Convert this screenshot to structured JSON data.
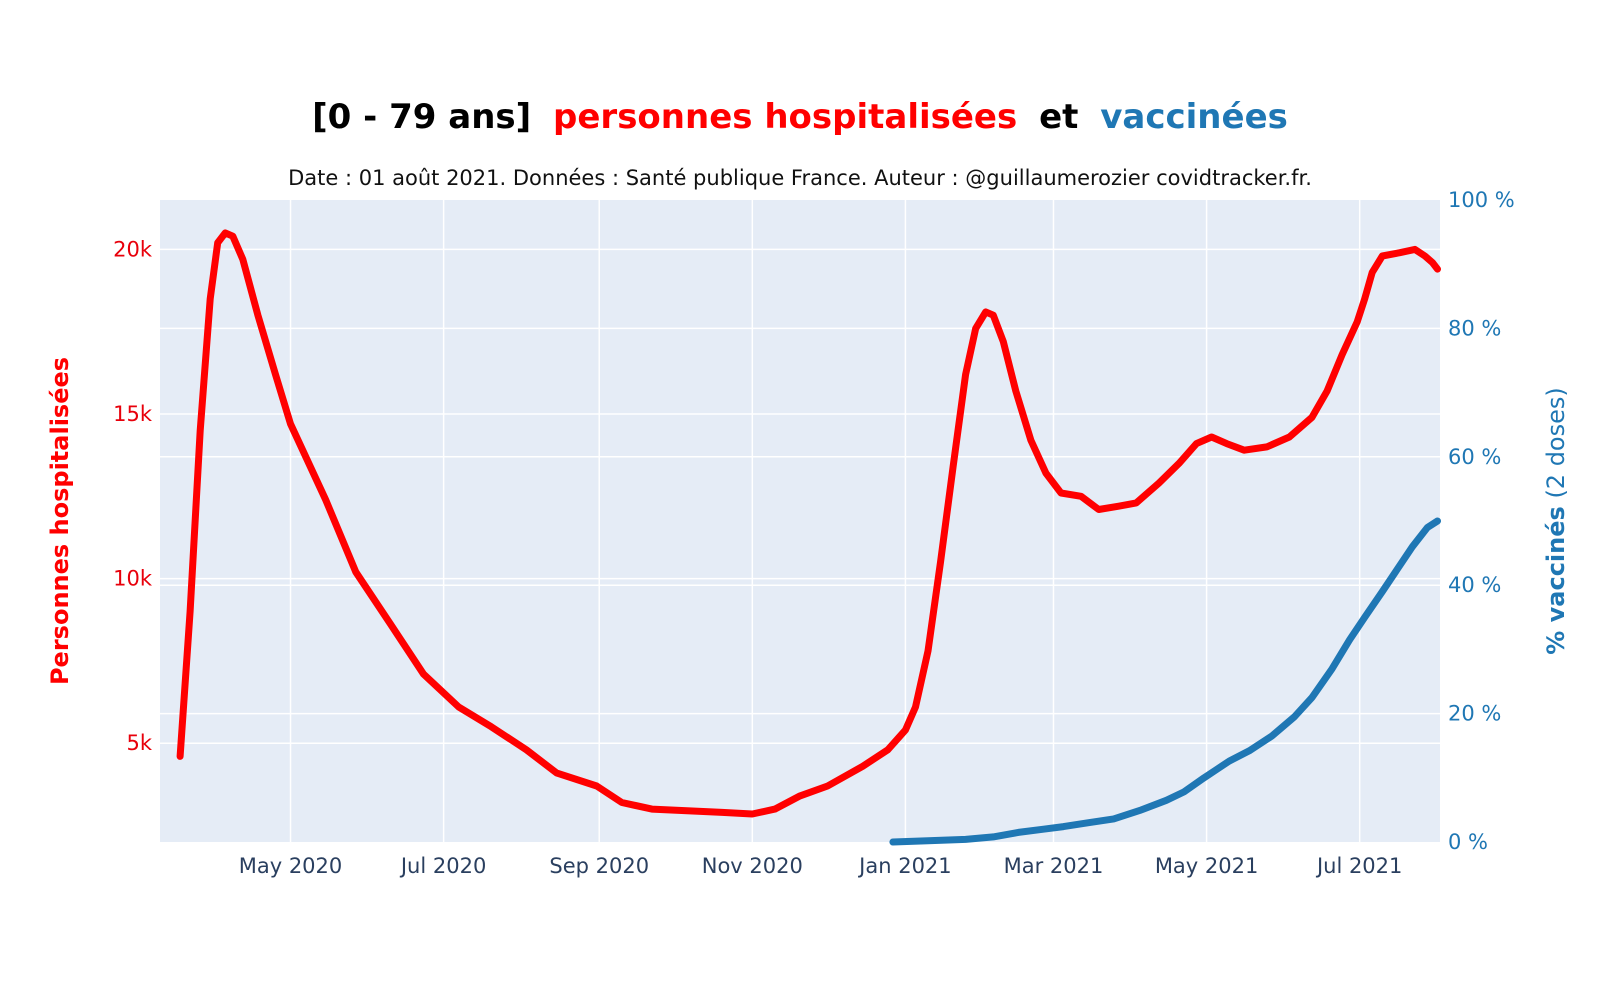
{
  "title": {
    "prefix": "[0 - 79 ans]",
    "part_red": "personnes hospitalisées",
    "part_mid": "et",
    "part_blue": "vaccinées"
  },
  "subtitle": "Date : 01 août 2021. Données : Santé publique France. Auteur : @guillaumerozier covidtracker.fr.",
  "colors": {
    "red": "#ff0000",
    "blue": "#1f77b4",
    "plot_bg": "#e5ecf6",
    "grid": "#ffffff",
    "x_tick": "#2a3f5f"
  },
  "chart_data": {
    "type": "line",
    "grid": true,
    "x_ticks": [
      "May 2020",
      "Jul 2020",
      "Sep 2020",
      "Nov 2020",
      "Jan 2021",
      "Mar 2021",
      "May 2021",
      "Jul 2021"
    ],
    "y_left": {
      "label": "Personnes hospitalisées",
      "ticks": [
        "5k",
        "10k",
        "15k",
        "20k"
      ],
      "range": [
        2000,
        21500
      ]
    },
    "y_right": {
      "label_bold": "% vaccinés",
      "label_normal": " (2 doses)",
      "ticks": [
        "0 %",
        "20 %",
        "40 %",
        "60 %",
        "80 %",
        "100 %"
      ],
      "range": [
        0,
        100
      ]
    },
    "x_range": [
      "2020-03-10",
      "2021-08-02"
    ],
    "series": [
      {
        "name": "Personnes hospitalisées",
        "axis": "left",
        "color": "#ff0000",
        "points": [
          [
            "2020-03-18",
            4600
          ],
          [
            "2020-03-22",
            9000
          ],
          [
            "2020-03-26",
            14500
          ],
          [
            "2020-03-30",
            18500
          ],
          [
            "2020-04-02",
            20200
          ],
          [
            "2020-04-05",
            20500
          ],
          [
            "2020-04-08",
            20400
          ],
          [
            "2020-04-12",
            19700
          ],
          [
            "2020-04-18",
            18000
          ],
          [
            "2020-04-25",
            16200
          ],
          [
            "2020-05-01",
            14700
          ],
          [
            "2020-05-15",
            12400
          ],
          [
            "2020-05-27",
            10200
          ],
          [
            "2020-06-10",
            8600
          ],
          [
            "2020-06-23",
            7100
          ],
          [
            "2020-07-07",
            6100
          ],
          [
            "2020-07-20",
            5500
          ],
          [
            "2020-08-03",
            4800
          ],
          [
            "2020-08-15",
            4100
          ],
          [
            "2020-08-31",
            3700
          ],
          [
            "2020-09-10",
            3200
          ],
          [
            "2020-09-22",
            3000
          ],
          [
            "2020-10-06",
            2950
          ],
          [
            "2020-10-20",
            2900
          ],
          [
            "2020-11-01",
            2850
          ],
          [
            "2020-11-10",
            3000
          ],
          [
            "2020-11-20",
            3400
          ],
          [
            "2020-12-01",
            3700
          ],
          [
            "2020-12-15",
            4300
          ],
          [
            "2020-12-25",
            4800
          ],
          [
            "2021-01-01",
            5400
          ],
          [
            "2021-01-05",
            6100
          ],
          [
            "2021-01-10",
            7800
          ],
          [
            "2021-01-15",
            10500
          ],
          [
            "2021-01-20",
            13400
          ],
          [
            "2021-01-25",
            16200
          ],
          [
            "2021-01-29",
            17600
          ],
          [
            "2021-02-02",
            18100
          ],
          [
            "2021-02-05",
            18000
          ],
          [
            "2021-02-09",
            17200
          ],
          [
            "2021-02-14",
            15700
          ],
          [
            "2021-02-20",
            14200
          ],
          [
            "2021-02-26",
            13200
          ],
          [
            "2021-03-04",
            12600
          ],
          [
            "2021-03-12",
            12500
          ],
          [
            "2021-03-19",
            12100
          ],
          [
            "2021-03-27",
            12200
          ],
          [
            "2021-04-03",
            12300
          ],
          [
            "2021-04-12",
            12900
          ],
          [
            "2021-04-20",
            13500
          ],
          [
            "2021-04-27",
            14100
          ],
          [
            "2021-05-03",
            14300
          ],
          [
            "2021-05-09",
            14100
          ],
          [
            "2021-05-16",
            13900
          ],
          [
            "2021-05-25",
            14000
          ],
          [
            "2021-06-03",
            14300
          ],
          [
            "2021-06-12",
            14900
          ],
          [
            "2021-06-18",
            15700
          ],
          [
            "2021-06-24",
            16800
          ],
          [
            "2021-06-30",
            17800
          ],
          [
            "2021-07-03",
            18500
          ],
          [
            "2021-07-06",
            19300
          ],
          [
            "2021-07-10",
            19800
          ],
          [
            "2021-07-17",
            19900
          ],
          [
            "2021-07-23",
            20000
          ],
          [
            "2021-07-27",
            19800
          ],
          [
            "2021-07-30",
            19600
          ],
          [
            "2021-08-01",
            19400
          ]
        ]
      },
      {
        "name": "% vaccinés (2 doses)",
        "axis": "right",
        "color": "#1f77b4",
        "points": [
          [
            "2020-12-27",
            0
          ],
          [
            "2021-01-10",
            0.2
          ],
          [
            "2021-01-25",
            0.4
          ],
          [
            "2021-02-05",
            0.8
          ],
          [
            "2021-02-15",
            1.5
          ],
          [
            "2021-02-25",
            2.0
          ],
          [
            "2021-03-05",
            2.4
          ],
          [
            "2021-03-15",
            3.0
          ],
          [
            "2021-03-25",
            3.6
          ],
          [
            "2021-04-05",
            5.0
          ],
          [
            "2021-04-15",
            6.5
          ],
          [
            "2021-04-22",
            7.8
          ],
          [
            "2021-04-30",
            10.0
          ],
          [
            "2021-05-05",
            11.3
          ],
          [
            "2021-05-10",
            12.6
          ],
          [
            "2021-05-18",
            14.2
          ],
          [
            "2021-05-27",
            16.5
          ],
          [
            "2021-06-05",
            19.5
          ],
          [
            "2021-06-12",
            22.5
          ],
          [
            "2021-06-20",
            27.0
          ],
          [
            "2021-06-27",
            31.5
          ],
          [
            "2021-07-03",
            35.0
          ],
          [
            "2021-07-10",
            39.0
          ],
          [
            "2021-07-16",
            42.5
          ],
          [
            "2021-07-22",
            46.0
          ],
          [
            "2021-07-28",
            49.0
          ],
          [
            "2021-08-01",
            50.0
          ]
        ]
      }
    ]
  }
}
